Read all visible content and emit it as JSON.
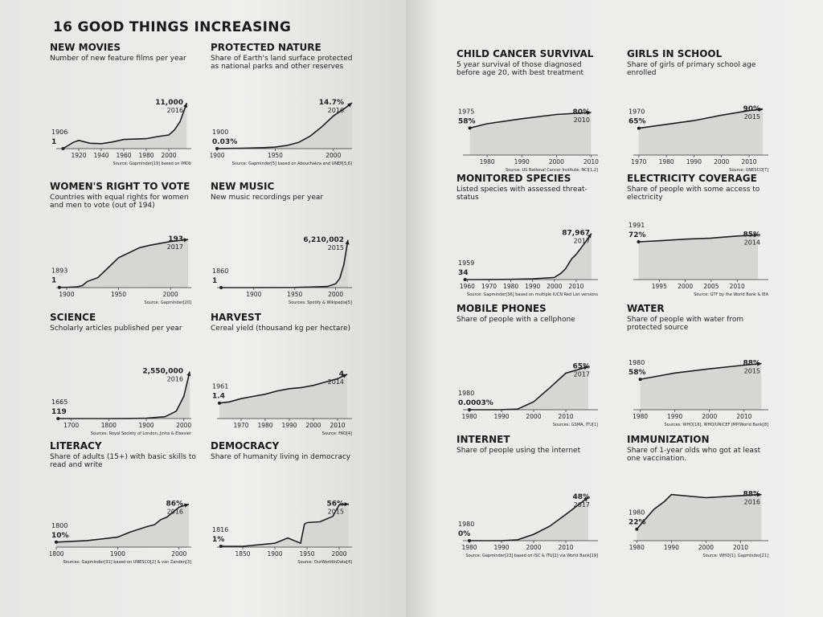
{
  "title": "16 GOOD THINGS INCREASING",
  "chart_data": [
    {
      "type": "area",
      "title": "NEW MOVIES",
      "subtitle": "Number of new feature films per year",
      "x": [
        1906,
        1915,
        1920,
        1930,
        1940,
        1950,
        1960,
        1970,
        1980,
        1990,
        2000,
        2005,
        2010,
        2016
      ],
      "values": [
        1,
        1500,
        2000,
        1300,
        1200,
        1600,
        2200,
        2300,
        2400,
        2900,
        3300,
        4500,
        6500,
        11000
      ],
      "value_labels": [
        "1",
        null,
        null,
        null,
        null,
        null,
        null,
        null,
        null,
        null,
        null,
        null,
        null,
        "11,000"
      ],
      "xlim": [
        1900,
        2020
      ],
      "ylim": [
        0,
        12000
      ],
      "xticks": [
        1920,
        1940,
        1960,
        1980,
        2000
      ],
      "source": "Source: Gapminder[19] based on IMDb"
    },
    {
      "type": "area",
      "title": "PROTECTED NATURE",
      "subtitle": "Share of Earth's land surface protected as national parks and other reserves",
      "x": [
        1900,
        1920,
        1940,
        1950,
        1960,
        1970,
        1980,
        1990,
        2000,
        2010,
        2016
      ],
      "values": [
        0.03,
        0.1,
        0.3,
        0.5,
        1,
        2,
        4,
        7,
        10.5,
        13,
        14.7
      ],
      "value_labels": [
        "0.03%",
        null,
        null,
        null,
        null,
        null,
        null,
        null,
        null,
        null,
        "14.7%"
      ],
      "xlim": [
        1900,
        2016
      ],
      "ylim": [
        0,
        16
      ],
      "xticks": [
        1900,
        1950,
        2000
      ],
      "source": "Source: Gapminder[5] based on Abouchakra and UNEP[5,6]"
    },
    {
      "type": "area",
      "title": "WOMEN'S RIGHT TO VOTE",
      "subtitle": "Countries with equal rights for women and men to vote (out of 194)",
      "x": [
        1893,
        1900,
        1910,
        1915,
        1920,
        1930,
        1945,
        1950,
        1960,
        1970,
        1980,
        2000,
        2017
      ],
      "values": [
        1,
        1,
        3,
        8,
        25,
        40,
        100,
        120,
        140,
        160,
        170,
        185,
        193
      ],
      "value_labels": [
        "1",
        null,
        null,
        null,
        null,
        null,
        null,
        null,
        null,
        null,
        null,
        null,
        "193"
      ],
      "xlim": [
        1890,
        2020
      ],
      "ylim": [
        0,
        200
      ],
      "xticks": [
        1900,
        1950,
        2000
      ],
      "source": "Source: Gapminder[20]"
    },
    {
      "type": "area",
      "title": "NEW MUSIC",
      "subtitle": "New music recordings per year",
      "x": [
        1860,
        1900,
        1950,
        1990,
        2000,
        2005,
        2010,
        2015
      ],
      "values": [
        1,
        1000,
        20000,
        150000,
        500000,
        1200000,
        3000000,
        6210002
      ],
      "value_labels": [
        "1",
        null,
        null,
        null,
        null,
        null,
        null,
        "6,210,002"
      ],
      "xlim": [
        1855,
        2020
      ],
      "ylim": [
        0,
        6500000
      ],
      "xticks": [
        1900,
        1950,
        2000
      ],
      "source": "Sources: Spotify & Wikipedia[5]"
    },
    {
      "type": "area",
      "title": "SCIENCE",
      "subtitle": "Scholarly articles published per year",
      "x": [
        1665,
        1700,
        1750,
        1800,
        1850,
        1900,
        1950,
        1980,
        2000,
        2016
      ],
      "values": [
        119,
        200,
        500,
        1500,
        5000,
        20000,
        100000,
        400000,
        1200000,
        2550000
      ],
      "value_labels": [
        "119",
        null,
        null,
        null,
        null,
        null,
        null,
        null,
        null,
        "2,550,000"
      ],
      "xlim": [
        1660,
        2020
      ],
      "ylim": [
        0,
        2700000
      ],
      "xticks": [
        1700,
        1800,
        1900,
        2000
      ],
      "source": "Sources: Royal Society of London, Jinha & Elsevier"
    },
    {
      "type": "area",
      "title": "HARVEST",
      "subtitle": "Cereal yield (thousand kg per hectare)",
      "x": [
        1961,
        1965,
        1970,
        1975,
        1980,
        1985,
        1990,
        1995,
        2000,
        2005,
        2010,
        2014
      ],
      "values": [
        1.4,
        1.5,
        1.8,
        2.0,
        2.2,
        2.5,
        2.7,
        2.8,
        3.0,
        3.3,
        3.6,
        4
      ],
      "value_labels": [
        "1.4",
        null,
        null,
        null,
        null,
        null,
        null,
        null,
        null,
        null,
        null,
        "4"
      ],
      "xlim": [
        1960,
        2016
      ],
      "ylim": [
        0,
        4.5
      ],
      "xticks": [
        1970,
        1980,
        1990,
        2000,
        2010
      ],
      "source": "Source: FAO[4]"
    },
    {
      "type": "area",
      "title": "LITERACY",
      "subtitle": "Share of adults (15+) with basic skills to read and write",
      "x": [
        1800,
        1850,
        1900,
        1920,
        1950,
        1960,
        1970,
        1980,
        1990,
        2000,
        2010,
        2016
      ],
      "values": [
        10,
        13,
        20,
        30,
        42,
        45,
        55,
        60,
        70,
        80,
        84,
        86
      ],
      "value_labels": [
        "10%",
        null,
        null,
        null,
        null,
        null,
        null,
        null,
        null,
        null,
        null,
        "86%"
      ],
      "xlim": [
        1800,
        2020
      ],
      "ylim": [
        0,
        100
      ],
      "xticks": [
        1800,
        1900,
        2000
      ],
      "source": "Sources: Gapminder[31] based on UNESCO[2] & van Zanden[3]"
    },
    {
      "type": "area",
      "title": "DEMOCRACY",
      "subtitle": "Share of humanity living in democracy",
      "x": [
        1816,
        1850,
        1900,
        1920,
        1940,
        1946,
        1950,
        1970,
        1990,
        2000,
        2010,
        2015
      ],
      "values": [
        1,
        1,
        5,
        12,
        5,
        30,
        32,
        33,
        40,
        55,
        56,
        56
      ],
      "value_labels": [
        "1%",
        null,
        null,
        null,
        null,
        null,
        null,
        null,
        null,
        null,
        null,
        "56%"
      ],
      "xlim": [
        1810,
        2020
      ],
      "ylim": [
        0,
        65
      ],
      "xticks": [
        1850,
        1900,
        1950,
        2000
      ],
      "source": "Source: OurWorldInData[4]"
    },
    {
      "type": "area",
      "title": "CHILD CANCER SURVIVAL",
      "subtitle": "5 year survival of those diagnosed before age 20, with best treatment",
      "x": [
        1975,
        1980,
        1990,
        2000,
        2010
      ],
      "values": [
        58,
        64,
        71,
        77,
        80
      ],
      "value_labels": [
        "58%",
        null,
        null,
        null,
        "80%"
      ],
      "xlim": [
        1973,
        2012
      ],
      "ylim": [
        20,
        90
      ],
      "xticks": [
        1980,
        1990,
        2000,
        2010
      ],
      "source": "Source: US National Cancer Institute, NCI[1,2]"
    },
    {
      "type": "area",
      "title": "GIRLS IN SCHOOL",
      "subtitle": "Share of girls of primary school age enrolled",
      "x": [
        1970,
        1980,
        1990,
        2000,
        2010,
        2015
      ],
      "values": [
        65,
        70,
        75,
        82,
        88,
        90
      ],
      "value_labels": [
        "65%",
        null,
        null,
        null,
        null,
        "90%"
      ],
      "xlim": [
        1968,
        2017
      ],
      "ylim": [
        30,
        95
      ],
      "xticks": [
        1970,
        1980,
        1990,
        2000,
        2010
      ],
      "source": "Source: UNESCO[7]"
    },
    {
      "type": "area",
      "title": "MONITORED SPECIES",
      "subtitle": "Listed species with assessed threat-status",
      "x": [
        1959,
        1970,
        1980,
        1990,
        2000,
        2003,
        2005,
        2008,
        2010,
        2014,
        2017
      ],
      "values": [
        34,
        200,
        500,
        1500,
        4000,
        12000,
        20000,
        40000,
        48000,
        70000,
        87967
      ],
      "value_labels": [
        "34",
        null,
        null,
        null,
        null,
        null,
        null,
        null,
        null,
        null,
        "87,967"
      ],
      "xlim": [
        1958,
        2020
      ],
      "ylim": [
        0,
        95000
      ],
      "xticks": [
        1960,
        1970,
        1980,
        1990,
        2000,
        2010
      ],
      "source": "Source: Gapminder[36] based on multiple IUCN Red List versions"
    },
    {
      "type": "area",
      "title": "ELECTRICITY COVERAGE",
      "subtitle": "Share of people with some access to electricity",
      "x": [
        1991,
        1995,
        2000,
        2005,
        2010,
        2014
      ],
      "values": [
        72,
        74,
        77,
        79,
        83,
        85
      ],
      "value_labels": [
        "72%",
        null,
        null,
        null,
        null,
        "85%"
      ],
      "xlim": [
        1990,
        2016
      ],
      "ylim": [
        0,
        95
      ],
      "xticks": [
        1995,
        2000,
        2005,
        2010
      ],
      "source": "Source: GTF by the World Bank & IEA"
    },
    {
      "type": "area",
      "title": "MOBILE PHONES",
      "subtitle": "Share of people with a cellphone",
      "x": [
        1980,
        1990,
        1995,
        2000,
        2005,
        2010,
        2017
      ],
      "values": [
        0.0003,
        0.1,
        1,
        12,
        33,
        55,
        65
      ],
      "value_labels": [
        "0.0003%",
        null,
        null,
        null,
        null,
        null,
        "65%"
      ],
      "xlim": [
        1978,
        2020
      ],
      "ylim": [
        0,
        75
      ],
      "xticks": [
        1980,
        1990,
        2000,
        2010
      ],
      "source": "Sources: GSMA, ITU[1]"
    },
    {
      "type": "area",
      "title": "WATER",
      "subtitle": "Share of people with water from protected source",
      "x": [
        1980,
        1990,
        2000,
        2010,
        2015
      ],
      "values": [
        58,
        70,
        78,
        85,
        88
      ],
      "value_labels": [
        "58%",
        null,
        null,
        null,
        "88%"
      ],
      "xlim": [
        1978,
        2017
      ],
      "ylim": [
        0,
        95
      ],
      "xticks": [
        1980,
        1990,
        2000,
        2010
      ],
      "source": "Sources: WHO[16], WHO/UNICEF JMP/World Bank[8]"
    },
    {
      "type": "area",
      "title": "INTERNET",
      "subtitle": "Share of people using the internet",
      "x": [
        1980,
        1990,
        1995,
        2000,
        2005,
        2010,
        2017
      ],
      "values": [
        0,
        0,
        1,
        7,
        16,
        29,
        48
      ],
      "value_labels": [
        "0%",
        null,
        null,
        null,
        null,
        null,
        "48%"
      ],
      "xlim": [
        1978,
        2020
      ],
      "ylim": [
        0,
        55
      ],
      "xticks": [
        1980,
        1990,
        2000,
        2010
      ],
      "source": "Source: Gapminder[23] based on ISC & ITU[2] via World Bank[19]"
    },
    {
      "type": "area",
      "title": "IMMUNIZATION",
      "subtitle": "Share of 1-year olds who got at least one vaccination.",
      "x": [
        1980,
        1983,
        1985,
        1988,
        1990,
        2000,
        2010,
        2016
      ],
      "values": [
        22,
        45,
        60,
        75,
        88,
        82,
        86,
        88
      ],
      "value_labels": [
        "22%",
        null,
        null,
        null,
        null,
        null,
        null,
        "88%"
      ],
      "xlim": [
        1979,
        2018
      ],
      "ylim": [
        0,
        95
      ],
      "xticks": [
        1980,
        1990,
        2000,
        2010
      ],
      "source": "Source: WHO[1], Gapminder[21]"
    }
  ]
}
